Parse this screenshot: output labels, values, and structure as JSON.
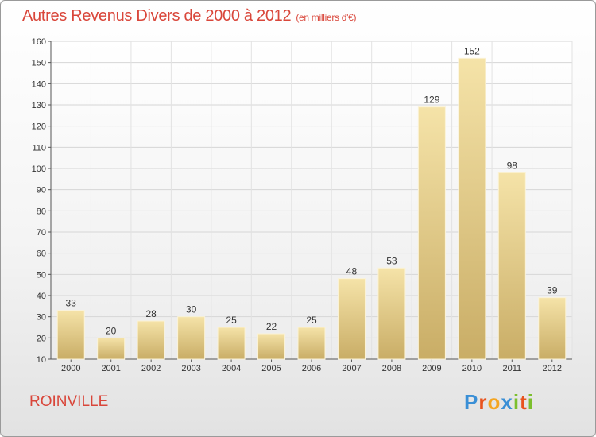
{
  "title": "Autres Revenus Divers de 2000 à 2012",
  "unit": "(en milliers d'€)",
  "city": "ROINVILLE",
  "logo": {
    "letters": [
      "P",
      "r",
      "o",
      "x",
      "i",
      "t",
      "i"
    ],
    "colors": [
      "#3a8fd6",
      "#e8531e",
      "#f4a521",
      "#3a8fd6",
      "#7cbf2e",
      "#e8531e",
      "#7cbf2e"
    ]
  },
  "colors": {
    "title": "#d9463a",
    "bar_top": "#f5e3a8",
    "bar_bottom": "#c9ad66"
  },
  "chart_data": {
    "type": "bar",
    "title": "Autres Revenus Divers de 2000 à 2012",
    "xlabel": "",
    "ylabel": "",
    "categories": [
      "2000",
      "2001",
      "2002",
      "2003",
      "2004",
      "2005",
      "2006",
      "2007",
      "2008",
      "2009",
      "2010",
      "2011",
      "2012"
    ],
    "values": [
      33,
      20,
      28,
      30,
      25,
      22,
      25,
      48,
      53,
      129,
      152,
      98,
      39
    ],
    "ylim": [
      10,
      160
    ],
    "yticks": [
      10,
      20,
      30,
      40,
      50,
      60,
      70,
      80,
      90,
      100,
      110,
      120,
      130,
      140,
      150,
      160
    ],
    "grid": true,
    "legend": "none"
  }
}
